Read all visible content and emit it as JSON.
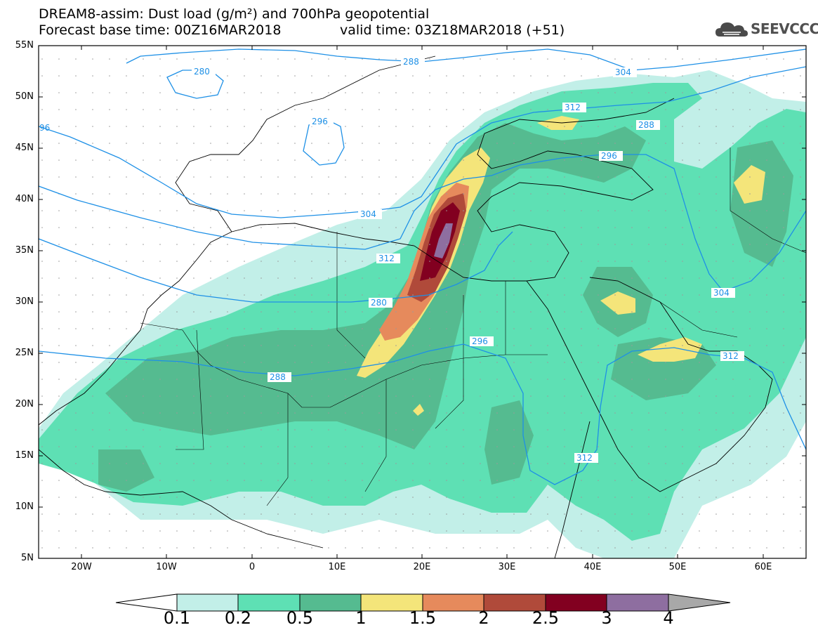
{
  "header": {
    "title_line1": "DREAM8-assim: Dust load (g/m²) and 700hPa geopotential",
    "title_line2": "Forecast base time: 00Z16MAR2018",
    "valid_time": "valid time: 03Z18MAR2018 (+51)",
    "logo_text": "SEEVCCC",
    "logo_icon": "cloud-icon"
  },
  "map": {
    "projection": "lat-lon",
    "lon_range": [
      -25,
      65
    ],
    "lat_range": [
      5,
      55
    ],
    "lat_ticks": [
      "55N",
      "50N",
      "45N",
      "40N",
      "35N",
      "30N",
      "25N",
      "20N",
      "15N",
      "10N",
      "5N"
    ],
    "lon_ticks": [
      "20W",
      "10W",
      "0",
      "10E",
      "20E",
      "30E",
      "40E",
      "50E",
      "60E"
    ],
    "contour_labels": [
      "280",
      "288",
      "296",
      "304",
      "312",
      "280",
      "288",
      "296",
      "304",
      "312",
      "288",
      "296",
      "304",
      "312",
      "312",
      "280",
      "288"
    ],
    "colors": {
      "c01": "#c2efe8",
      "c02": "#5ee0b4",
      "c05": "#55bb90",
      "c1": "#f4e57a",
      "c15": "#e68a5c",
      "c2": "#b04a3a",
      "c25": "#820020",
      "c3": "#8e6ea0",
      "c4": "#a8a8a8",
      "contour": "#1e90e6"
    }
  },
  "colorbar": {
    "labels": [
      "0.1",
      "0.2",
      "0.5",
      "1",
      "1.5",
      "2",
      "2.5",
      "3",
      "4"
    ]
  }
}
